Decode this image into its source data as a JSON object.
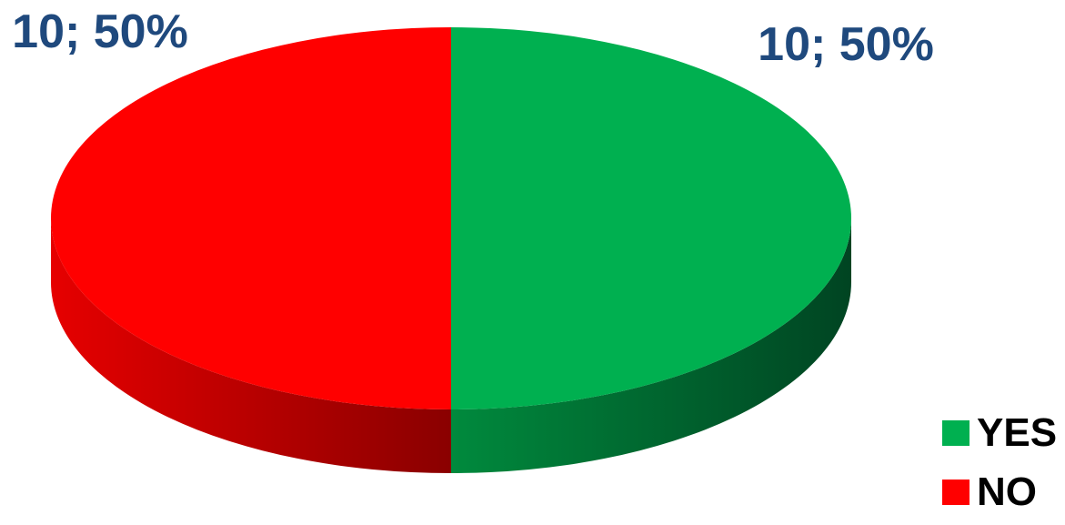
{
  "chart_data": {
    "type": "pie",
    "style": "3d",
    "slices": [
      {
        "name": "YES",
        "value": 10,
        "percent": 50,
        "label": "10; 50%",
        "color": "#00b050",
        "side_dark": "#004422",
        "side_light": "#008a3d"
      },
      {
        "name": "NO",
        "value": 10,
        "percent": 50,
        "label": "10; 50%",
        "color": "#ff0000",
        "side_dark": "#8a0000",
        "side_light": "#e60000"
      }
    ],
    "label_color": "#1f497d",
    "legend": {
      "placement": "bottom-right",
      "items": [
        {
          "label": "YES",
          "color": "#00b050"
        },
        {
          "label": "NO",
          "color": "#ff0000"
        }
      ]
    }
  }
}
